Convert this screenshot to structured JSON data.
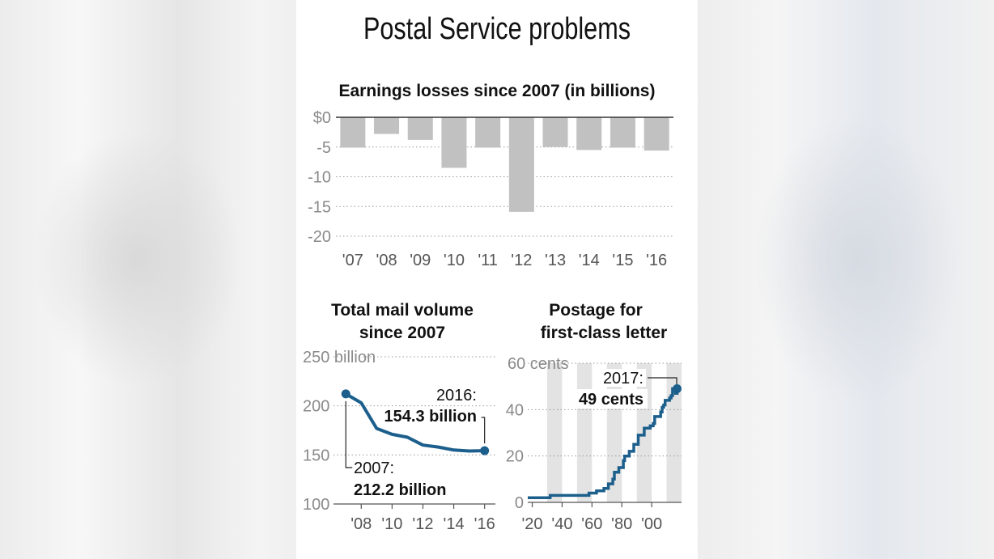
{
  "title": "Postal Service problems",
  "chart_data": [
    {
      "type": "bar",
      "title": "Earnings losses since 2007 (in billions)",
      "categories": [
        "'07",
        "'08",
        "'09",
        "'10",
        "'11",
        "'12",
        "'13",
        "'14",
        "'15",
        "'16"
      ],
      "values": [
        -5.1,
        -2.8,
        -3.8,
        -8.5,
        -5.1,
        -15.9,
        -5.0,
        -5.5,
        -5.1,
        -5.6
      ],
      "ylim": [
        -20,
        0
      ],
      "yticks": [
        0,
        -5,
        -10,
        -15,
        -20
      ],
      "ytick_labels": [
        "$0",
        "-5",
        "-10",
        "-15",
        "-20"
      ],
      "bar_color": "#c1c1c1",
      "grid": "dotted"
    },
    {
      "type": "line",
      "title_line1": "Total mail volume",
      "title_line2": "since 2007",
      "x": [
        2007,
        2008,
        2009,
        2010,
        2011,
        2012,
        2013,
        2014,
        2015,
        2016
      ],
      "y": [
        212.2,
        203,
        177,
        171,
        168,
        160,
        158,
        155,
        154,
        154.3
      ],
      "xlim": [
        2006.2,
        2016.7
      ],
      "ylim": [
        100,
        250
      ],
      "yticks": [
        250,
        200,
        150,
        100
      ],
      "ytick_labels": [
        "250 billion",
        "200",
        "150",
        "100"
      ],
      "xticks": [
        2008,
        2010,
        2012,
        2014,
        2016
      ],
      "xtick_labels": [
        "'08",
        "'10",
        "'12",
        "'14",
        "'16"
      ],
      "line_color": "#1c5f8c",
      "annotations": {
        "end_label": "2016:",
        "end_value": "154.3 billion",
        "start_label": "2007:",
        "start_value": "212.2 billion"
      }
    },
    {
      "type": "line",
      "step": true,
      "title_line1": "Postage for",
      "title_line2": "first-class letter",
      "x": [
        1917,
        1932,
        1958,
        1963,
        1968,
        1971,
        1974,
        1975,
        1978,
        1981,
        1981.9,
        1985,
        1988,
        1991,
        1995,
        1999,
        2001,
        2002,
        2006,
        2007,
        2008,
        2009,
        2012,
        2013,
        2014,
        2016,
        2017
      ],
      "y": [
        2,
        3,
        4,
        5,
        6,
        8,
        10,
        13,
        15,
        18,
        20,
        22,
        25,
        29,
        32,
        33,
        34,
        37,
        39,
        41,
        42,
        44,
        45,
        46,
        49,
        47,
        49
      ],
      "xlim": [
        1917,
        2020
      ],
      "ylim": [
        0,
        60
      ],
      "yticks": [
        60,
        40,
        20,
        0
      ],
      "ytick_labels": [
        "60 cents",
        "40",
        "20",
        "0"
      ],
      "xticks": [
        1920,
        1940,
        1960,
        1980,
        2000
      ],
      "xtick_labels": [
        "'20",
        "'40",
        "'60",
        "'80",
        "'00"
      ],
      "decade_bands": [
        [
          1930,
          1940
        ],
        [
          1950,
          1960
        ],
        [
          1970,
          1980
        ],
        [
          1990,
          2000
        ],
        [
          2010,
          2020
        ]
      ],
      "band_color": "#e3e3e3",
      "line_color": "#1c5f8c",
      "annotations": {
        "end_label": "2017:",
        "end_value": "49 cents"
      }
    }
  ]
}
